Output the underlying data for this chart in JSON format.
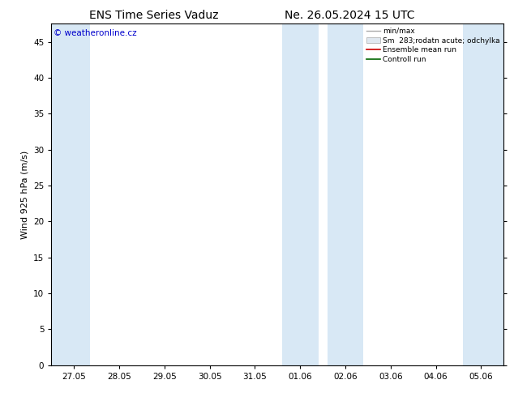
{
  "title_left": "ENS Time Series Vaduz",
  "title_right": "Ne. 26.05.2024 15 UTC",
  "ylabel": "Wind 925 hPa (m/s)",
  "watermark": "© weatheronline.cz",
  "ylim": [
    0,
    47.5
  ],
  "yticks": [
    0,
    5,
    10,
    15,
    20,
    25,
    30,
    35,
    40,
    45
  ],
  "x_labels": [
    "27.05",
    "28.05",
    "29.05",
    "30.05",
    "31.05",
    "01.06",
    "02.06",
    "03.06",
    "04.06",
    "05.06"
  ],
  "x_tick_positions": [
    0,
    1,
    2,
    3,
    4,
    5,
    6,
    7,
    8,
    9
  ],
  "xlim": [
    -0.5,
    9.5
  ],
  "shaded_bands": [
    [
      -0.5,
      0.35
    ],
    [
      4.6,
      5.4
    ],
    [
      5.6,
      6.4
    ],
    [
      8.6,
      9.5
    ]
  ],
  "shade_color": "#d8e8f5",
  "bg_color": "#ffffff",
  "plot_bg_color": "#ffffff",
  "legend_minmax_color": "#aaaaaa",
  "legend_std_color": "#cccccc",
  "legend_mean_color": "#cc0000",
  "legend_control_color": "#006600",
  "title_fontsize": 10,
  "tick_fontsize": 7.5,
  "ylabel_fontsize": 8,
  "watermark_color": "#0000cc",
  "border_color": "#000000",
  "legend_entries": [
    "min/max",
    "Sm  283;rodatn acute; odchylka",
    "Ensemble mean run",
    "Controll run"
  ]
}
